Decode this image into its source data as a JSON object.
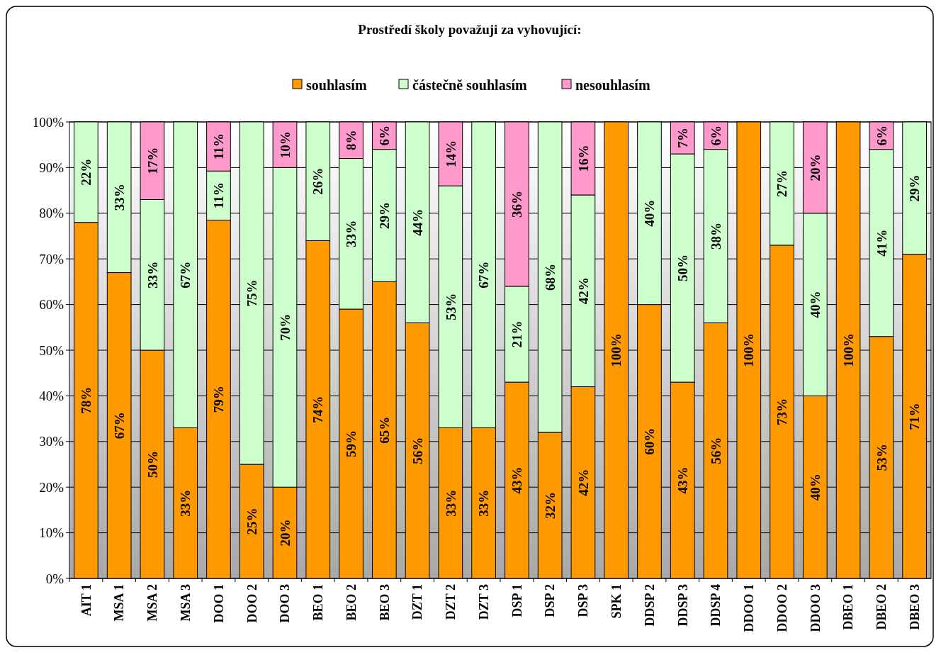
{
  "chart_data": {
    "type": "bar",
    "stacked": true,
    "title": "Prostředí školy považuji za vyhovující:",
    "legend": "top",
    "grid": "y",
    "categories": [
      "AIT 1",
      "MSA 1",
      "MSA 2",
      "MSA 3",
      "DOO 1",
      "DOO 2",
      "DOO 3",
      "BEO 1",
      "BEO 2",
      "BEO 3",
      "DZT 1",
      "DZT 2",
      "DZT 3",
      "DSP 1",
      "DSP 2",
      "DSP 3",
      "SPK 1",
      "DDSP 2",
      "DDSP 3",
      "DDSP 4",
      "DDOO 1",
      "DDOO 2",
      "DDOO 3",
      "DBEO 1",
      "DBEO 2",
      "DBEO 3"
    ],
    "ylim": [
      0,
      100
    ],
    "yticks": [
      {
        "value": 0,
        "label": "0%"
      },
      {
        "value": 10,
        "label": "10%"
      },
      {
        "value": 20,
        "label": "20%"
      },
      {
        "value": 30,
        "label": "30%"
      },
      {
        "value": 40,
        "label": "40%"
      },
      {
        "value": 50,
        "label": "50%"
      },
      {
        "value": 60,
        "label": "60%"
      },
      {
        "value": 70,
        "label": "70%"
      },
      {
        "value": 80,
        "label": "80%"
      },
      {
        "value": 90,
        "label": "90%"
      },
      {
        "value": 100,
        "label": "100%"
      }
    ],
    "series": [
      {
        "name": "souhlasím",
        "color": "#ff9900",
        "values": [
          78,
          67,
          50,
          33,
          78.5,
          25,
          20,
          74,
          59,
          65,
          56,
          33,
          33,
          43,
          32,
          42,
          100,
          60,
          43,
          56,
          100,
          73,
          40,
          100,
          53,
          71
        ],
        "value_labels": [
          "78%",
          "67%",
          "50%",
          "33%",
          "79%",
          "25%",
          "20%",
          "74%",
          "59%",
          "65%",
          "56%",
          "33%",
          "33%",
          "43%",
          "32%",
          "42%",
          "100%",
          "60%",
          "43%",
          "56%",
          "100%",
          "73%",
          "40%",
          "100%",
          "53%",
          "71%"
        ]
      },
      {
        "name": "částečně souhlasím",
        "color": "#ccffcc",
        "values": [
          22,
          33,
          33,
          67,
          10.75,
          75,
          70,
          26,
          33,
          29,
          44,
          53,
          67,
          21,
          68,
          42,
          0,
          40,
          50,
          38,
          0,
          27,
          40,
          0,
          41,
          29
        ],
        "value_labels": [
          "22%",
          "33%",
          "33%",
          "67%",
          "11%",
          "75%",
          "70%",
          "26%",
          "33%",
          "29%",
          "44%",
          "53%",
          "67%",
          "21%",
          "68%",
          "42%",
          null,
          "40%",
          "50%",
          "38%",
          null,
          "27%",
          "40%",
          null,
          "41%",
          "29%"
        ]
      },
      {
        "name": "nesouhlasím",
        "color": "#ff99cc",
        "values": [
          0,
          0,
          17,
          0,
          10.75,
          0,
          10,
          0,
          8,
          6,
          0,
          14,
          0,
          36,
          0,
          16,
          0,
          0,
          7,
          6,
          0,
          0,
          20,
          0,
          6,
          0
        ],
        "value_labels": [
          null,
          null,
          "17%",
          null,
          "11%",
          null,
          "10%",
          null,
          "8%",
          "6%",
          null,
          "14%",
          null,
          "36%",
          null,
          "16%",
          null,
          null,
          "7%",
          "6%",
          null,
          null,
          "20%",
          null,
          "6%",
          null
        ]
      }
    ]
  }
}
